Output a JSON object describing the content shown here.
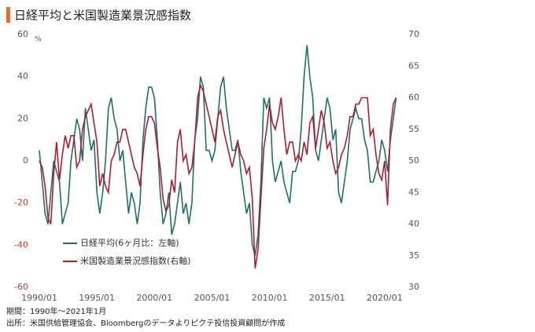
{
  "chart_data": {
    "type": "line",
    "title": "日経平均と米国製造業景況感指数",
    "y_unit": "%",
    "notes": [
      "期間：1990年～2021年1月",
      "出所：米国供給管理協会、Bloombergのデータよりピクテ投信投資顧問が作成"
    ],
    "x": [
      1990,
      1990.25,
      1990.5,
      1990.75,
      1991,
      1991.25,
      1991.5,
      1991.75,
      1992,
      1992.25,
      1992.5,
      1992.75,
      1993,
      1993.25,
      1993.5,
      1993.75,
      1994,
      1994.25,
      1994.5,
      1994.75,
      1995,
      1995.25,
      1995.5,
      1995.75,
      1996,
      1996.25,
      1996.5,
      1996.75,
      1997,
      1997.25,
      1997.5,
      1997.75,
      1998,
      1998.25,
      1998.5,
      1998.75,
      1999,
      1999.25,
      1999.5,
      1999.75,
      2000,
      2000.25,
      2000.5,
      2000.75,
      2001,
      2001.25,
      2001.5,
      2001.75,
      2002,
      2002.25,
      2002.5,
      2002.75,
      2003,
      2003.25,
      2003.5,
      2003.75,
      2004,
      2004.25,
      2004.5,
      2004.75,
      2005,
      2005.25,
      2005.5,
      2005.75,
      2006,
      2006.25,
      2006.5,
      2006.75,
      2007,
      2007.25,
      2007.5,
      2007.75,
      2008,
      2008.25,
      2008.5,
      2008.75,
      2009,
      2009.25,
      2009.5,
      2009.75,
      2010,
      2010.25,
      2010.5,
      2010.75,
      2011,
      2011.25,
      2011.5,
      2011.75,
      2012,
      2012.25,
      2012.5,
      2012.75,
      2013,
      2013.25,
      2013.5,
      2013.75,
      2014,
      2014.25,
      2014.5,
      2014.75,
      2015,
      2015.25,
      2015.5,
      2015.75,
      2016,
      2016.25,
      2016.5,
      2016.75,
      2017,
      2017.25,
      2017.5,
      2017.75,
      2018,
      2018.25,
      2018.5,
      2018.75,
      2019,
      2019.25,
      2019.5,
      2019.75,
      2020,
      2020.25,
      2020.5,
      2020.75,
      2021
    ],
    "series": [
      {
        "name": "日経平均(6ヶ月比：左軸)",
        "color": "#1f6e6e",
        "axis": "y",
        "values": [
          5,
          -10,
          -25,
          -30,
          -15,
          0,
          -5,
          -10,
          -30,
          -25,
          -20,
          0,
          10,
          20,
          15,
          0,
          25,
          15,
          5,
          10,
          -15,
          -25,
          -15,
          0,
          25,
          30,
          20,
          15,
          0,
          5,
          -10,
          -25,
          -15,
          -20,
          -30,
          -20,
          10,
          25,
          35,
          35,
          30,
          10,
          -15,
          -30,
          -25,
          -15,
          -35,
          -30,
          -20,
          -10,
          -25,
          -20,
          -30,
          -20,
          10,
          20,
          40,
          35,
          5,
          5,
          0,
          5,
          20,
          35,
          40,
          25,
          15,
          5,
          5,
          10,
          -5,
          -15,
          -25,
          -20,
          -40,
          -45,
          -35,
          -10,
          30,
          25,
          30,
          0,
          -10,
          -5,
          0,
          -10,
          -15,
          -20,
          -5,
          -5,
          0,
          15,
          40,
          55,
          40,
          30,
          5,
          0,
          10,
          20,
          30,
          25,
          10,
          15,
          -15,
          -20,
          -10,
          0,
          15,
          20,
          25,
          20,
          20,
          10,
          5,
          -10,
          -10,
          -5,
          0,
          10,
          5,
          -5,
          10,
          20,
          30
        ]
      },
      {
        "name": "米国製造業景況感指数(右軸)",
        "color": "#b01c2e",
        "axis": "y2",
        "values": [
          50,
          49,
          46,
          41,
          40,
          48,
          53,
          47,
          51,
          54,
          52,
          54,
          54,
          49,
          50,
          55,
          57,
          58,
          59,
          56,
          53,
          46,
          48,
          46,
          45,
          50,
          51,
          53,
          53,
          55,
          55,
          53,
          51,
          49,
          48,
          46,
          51,
          55,
          57,
          57,
          56,
          52,
          49,
          44,
          42,
          43,
          47,
          45,
          53,
          55,
          50,
          51,
          48,
          49,
          53,
          60,
          62,
          61,
          59,
          57,
          55,
          53,
          57,
          58,
          55,
          53,
          51,
          49,
          51,
          53,
          51,
          50,
          48,
          49,
          44,
          33,
          36,
          44,
          52,
          55,
          59,
          56,
          55,
          57,
          60,
          55,
          51,
          53,
          53,
          50,
          51,
          50,
          53,
          51,
          56,
          57,
          52,
          55,
          58,
          56,
          52,
          53,
          50,
          48,
          49,
          51,
          52,
          54,
          57,
          57,
          59,
          59,
          60,
          60,
          60,
          54,
          55,
          51,
          48,
          47,
          50,
          43,
          55,
          59,
          60
        ]
      }
    ],
    "xlim": [
      1990,
      2021.1
    ],
    "xticks": [
      {
        "value": 1990,
        "label": "1990/01"
      },
      {
        "value": 1995,
        "label": "1995/01"
      },
      {
        "value": 2000,
        "label": "2000/01"
      },
      {
        "value": 2005,
        "label": "2005/01"
      },
      {
        "value": 2010,
        "label": "2010/01"
      },
      {
        "value": 2015,
        "label": "2015/01"
      },
      {
        "value": 2020,
        "label": "2020/01"
      }
    ],
    "ylim": [
      -60,
      60
    ],
    "yticks": [
      -60,
      -40,
      -20,
      0,
      20,
      40,
      60
    ],
    "y2lim": [
      30,
      70
    ],
    "y2ticks": [
      30,
      35,
      40,
      45,
      50,
      55,
      60,
      65,
      70
    ],
    "negative_tick_color": "#c0392b"
  }
}
